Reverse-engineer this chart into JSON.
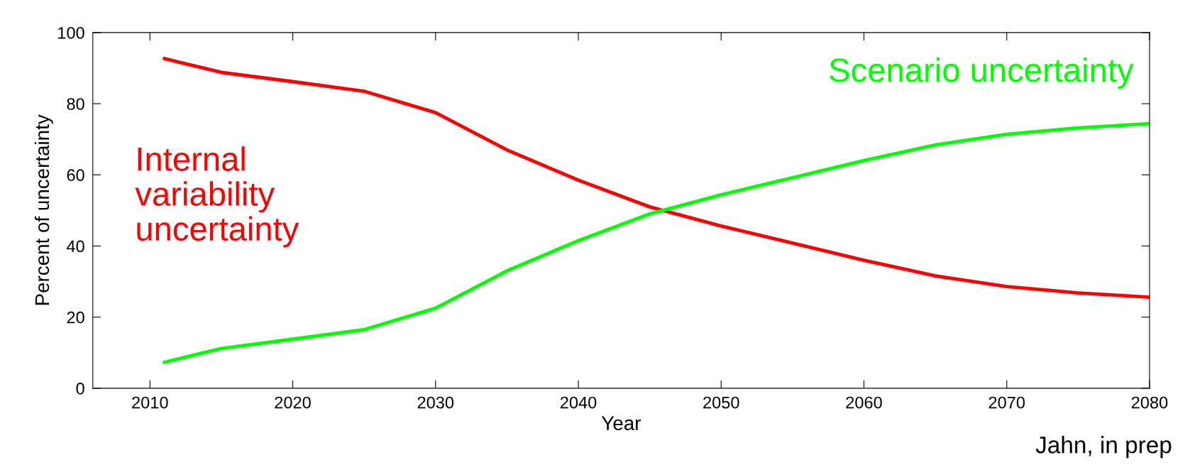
{
  "chart_data": {
    "type": "line",
    "xlabel": "Year",
    "ylabel": "Percent of uncertainty",
    "x": [
      2011,
      2015,
      2020,
      2025,
      2030,
      2035,
      2040,
      2045,
      2050,
      2055,
      2060,
      2065,
      2070,
      2075,
      2080
    ],
    "series": [
      {
        "name": "Internal\nvariability\nuncertainty",
        "color": "#ff0000",
        "values": [
          92.7,
          88.8,
          86.2,
          83.5,
          77.5,
          67,
          58.5,
          51,
          45.6,
          40.8,
          36,
          31.6,
          28.6,
          26.8,
          25.6
        ]
      },
      {
        "name": "Scenario uncertainty",
        "color": "#00ff00",
        "values": [
          7.3,
          11.2,
          13.8,
          16.5,
          22.5,
          33,
          41.5,
          49,
          54.4,
          59.2,
          64,
          68.4,
          71.4,
          73.2,
          74.4
        ]
      }
    ],
    "xlim": [
      2006,
      2080
    ],
    "xticks": [
      2010,
      2020,
      2030,
      2040,
      2050,
      2060,
      2070,
      2080
    ],
    "ylim": [
      0,
      100
    ],
    "yticks": [
      0,
      20,
      40,
      60,
      80,
      100
    ],
    "grid": false,
    "legend": false,
    "marker": "none",
    "line_style": "solid",
    "annotations": [
      "Jahn, in prep"
    ]
  }
}
